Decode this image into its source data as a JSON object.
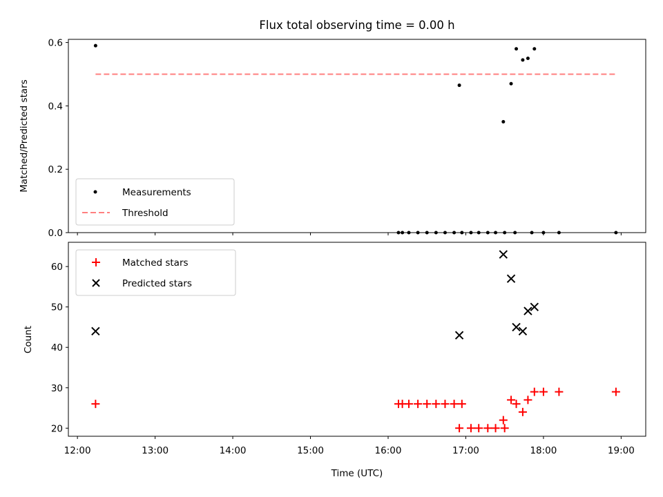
{
  "chart_data": [
    {
      "type": "scatter",
      "title": "Flux total observing time = 0.00 h",
      "xlabel": "",
      "ylabel": "Matched/Predicted stars",
      "xlim": [
        "11:53",
        "19:19"
      ],
      "ylim": [
        0,
        0.61
      ],
      "yticks": [
        "0.0",
        "0.2",
        "0.4",
        "0.6"
      ],
      "grid": false,
      "legend_position": "lower-left",
      "series": [
        {
          "name": "Measurements",
          "marker": "dot",
          "color": "#000000",
          "x": [
            "12:14",
            "16:08",
            "16:11",
            "16:16",
            "16:23",
            "16:30",
            "16:37",
            "16:44",
            "16:51",
            "16:57",
            "17:04",
            "17:10",
            "17:17",
            "17:23",
            "17:30",
            "17:38",
            "17:51",
            "16:55",
            "17:29",
            "17:35",
            "17:39",
            "17:44",
            "17:48",
            "17:53",
            "18:00",
            "18:12",
            "18:56"
          ],
          "y": [
            0.59,
            0.0,
            0.0,
            0.0,
            0.0,
            0.0,
            0.0,
            0.0,
            0.0,
            0.0,
            0.0,
            0.0,
            0.0,
            0.0,
            0.0,
            0.0,
            0.0,
            0.465,
            0.35,
            0.47,
            0.58,
            0.545,
            0.55,
            0.58,
            0.0,
            0.0,
            0.0
          ]
        },
        {
          "name": "Threshold",
          "marker": "dashed-line",
          "color": "#ff7f7f",
          "x": [
            "12:14",
            "18:56"
          ],
          "y": [
            0.5,
            0.5
          ]
        }
      ]
    },
    {
      "type": "scatter",
      "title": "",
      "xlabel": "Time (UTC)",
      "ylabel": "Count",
      "xlim": [
        "11:53",
        "19:19"
      ],
      "ylim": [
        18,
        66
      ],
      "yticks": [
        "20",
        "30",
        "40",
        "50",
        "60"
      ],
      "xticks": [
        "12:00",
        "13:00",
        "14:00",
        "15:00",
        "16:00",
        "17:00",
        "18:00",
        "19:00"
      ],
      "grid": false,
      "legend_position": "upper-left",
      "series": [
        {
          "name": "Matched stars",
          "marker": "plus",
          "color": "#ff0000",
          "x": [
            "12:14",
            "16:08",
            "16:11",
            "16:16",
            "16:23",
            "16:30",
            "16:37",
            "16:44",
            "16:51",
            "16:57",
            "16:55",
            "17:04",
            "17:10",
            "17:17",
            "17:23",
            "17:30",
            "17:29",
            "17:35",
            "17:39",
            "17:44",
            "17:48",
            "17:53",
            "18:00",
            "18:12",
            "18:56"
          ],
          "y": [
            26,
            26,
            26,
            26,
            26,
            26,
            26,
            26,
            26,
            26,
            20,
            20,
            20,
            20,
            20,
            20,
            22,
            27,
            26,
            24,
            27,
            29,
            29,
            29,
            29
          ]
        },
        {
          "name": "Predicted stars",
          "marker": "x",
          "color": "#000000",
          "x": [
            "12:14",
            "16:55",
            "17:29",
            "17:35",
            "17:39",
            "17:44",
            "17:48",
            "17:53"
          ],
          "y": [
            44,
            43,
            63,
            57,
            45,
            44,
            49,
            50
          ]
        }
      ]
    }
  ]
}
